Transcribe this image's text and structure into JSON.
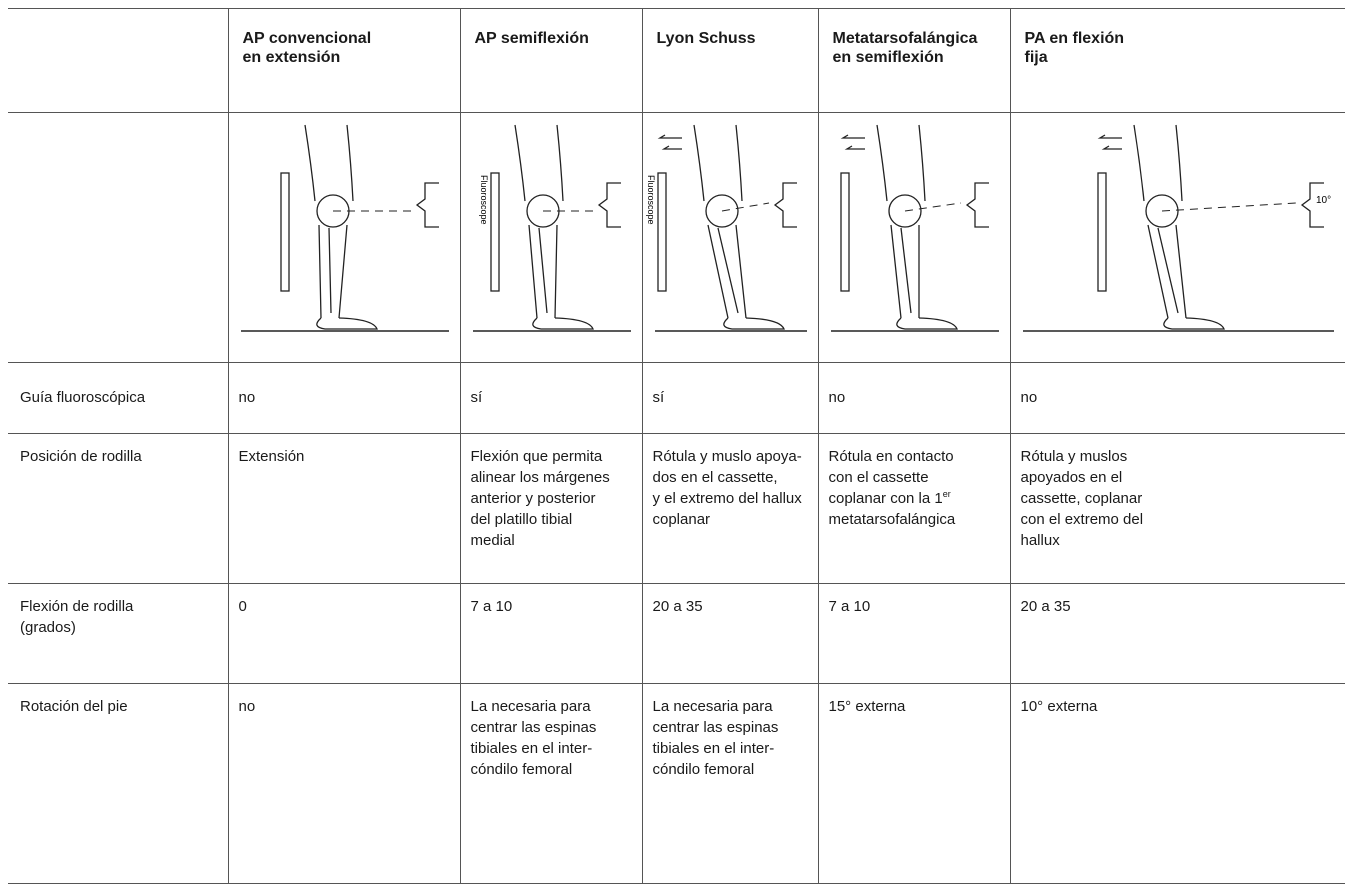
{
  "table": {
    "columns": [
      "AP convencional\nen extensión",
      "AP semiflexión",
      "Lyon Schuss",
      "Metatarsofalángica\nen semiflexión",
      "PA en flexión\nfija"
    ],
    "figures": {
      "fluoroscope_label": "Fluoroscope",
      "angle_label": "10°"
    },
    "rows": [
      {
        "label": "Guía fluoroscópica",
        "cells": [
          "no",
          "sí",
          "sí",
          "no",
          "no"
        ]
      },
      {
        "label": "Posición de rodilla",
        "cells": [
          "Extensión",
          "Flexión que permita\nalinear los márgenes\nanterior y posterior\ndel platillo tibial\nmedial",
          "Rótula y muslo apoya-\ndos en el cassette,\ny el extremo del hallux\ncoplanar",
          {
            "text": "Rótula en contacto\ncon el cassette\ncoplanar con la 1",
            "superscript": "er",
            "continuation": "\nmetatarsofalángica"
          },
          "Rótula y muslos\napoyados en el\ncassette, coplanar\ncon el extremo del\nhallux"
        ]
      },
      {
        "label": "Flexión de rodilla\n(grados)",
        "cells": [
          "0",
          "7 a 10",
          "20 a 35",
          "7 a 10",
          "20 a 35"
        ]
      },
      {
        "label": "Rotación del pie",
        "cells": [
          "no",
          "La necesaria para\ncentrar las espinas\ntibiales en el inter-\ncóndilo femoral",
          "La necesaria para\ncentrar las espinas\ntibiales en el inter-\ncóndilo femoral",
          "15° externa",
          "10° externa"
        ]
      }
    ]
  }
}
